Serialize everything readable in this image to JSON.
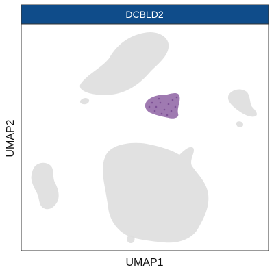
{
  "chart_data": {
    "type": "scatter",
    "title": "DCBLD2",
    "xlabel": "UMAP1",
    "ylabel": "UMAP2",
    "grid": false,
    "legend": "none",
    "colors": {
      "strip_fill": "#0f4c8a",
      "background_points": "#dedede",
      "expressing_points": "#8e63a3",
      "panel_border": "#333333"
    }
  }
}
